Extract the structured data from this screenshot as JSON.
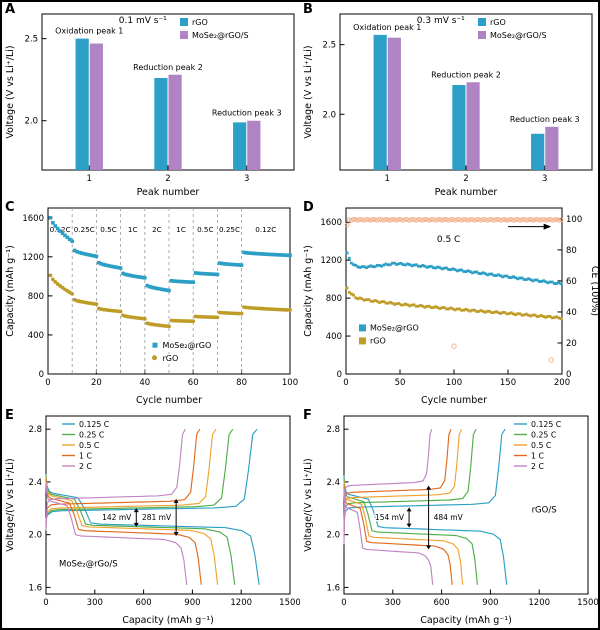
{
  "figure": {
    "panels": [
      "A",
      "B",
      "C",
      "D",
      "E",
      "F"
    ]
  },
  "chart_data": [
    {
      "panel": "A",
      "type": "bar",
      "title": "0.1 mV s⁻¹",
      "xlabel": "Peak number",
      "ylabel": "Voltage (V vs Li⁺/Li)",
      "categories": [
        "1",
        "2",
        "3"
      ],
      "ylim": [
        1.7,
        2.65
      ],
      "yticks": [
        2.0,
        2.5
      ],
      "ytick_labels": [
        "2.0",
        "2.5"
      ],
      "series": [
        {
          "name": "rGO",
          "color": "#2b9fc6",
          "values": [
            2.5,
            2.26,
            1.99
          ]
        },
        {
          "name": "MoSe₂@rGO/S",
          "color": "#b083c4",
          "values": [
            2.47,
            2.28,
            2.0
          ]
        }
      ],
      "annotations": [
        "Oxidation peak 1",
        "Reduction peak 2",
        "Reduction peak 3"
      ]
    },
    {
      "panel": "B",
      "type": "bar",
      "title": "0.3 mV s⁻¹",
      "xlabel": "Peak number",
      "ylabel": "Voltage (V vs Li⁺/Li)",
      "categories": [
        "1",
        "2",
        "3"
      ],
      "ylim": [
        1.6,
        2.72
      ],
      "yticks": [
        2.0,
        2.5
      ],
      "ytick_labels": [
        "2.0",
        "2.5"
      ],
      "series": [
        {
          "name": "rGO",
          "color": "#2b9fc6",
          "values": [
            2.57,
            2.21,
            1.86
          ]
        },
        {
          "name": "MoSe₂@rGO/S",
          "color": "#b083c4",
          "values": [
            2.55,
            2.23,
            1.91
          ]
        }
      ],
      "annotations": [
        "Oxidation peak 1",
        "Reduction peak 2",
        "Reduction peak 3"
      ]
    },
    {
      "panel": "C",
      "type": "rate",
      "xlabel": "Cycle number",
      "ylabel": "Capacity (mAh g⁻¹)",
      "xlim": [
        0,
        100
      ],
      "ylim": [
        0,
        1700
      ],
      "xticks": [
        0,
        20,
        40,
        60,
        80,
        100
      ],
      "yticks": [
        0,
        400,
        800,
        1200,
        1600
      ],
      "boundaries": [
        0,
        10,
        20,
        30,
        40,
        50,
        60,
        70,
        80,
        100
      ],
      "rate_labels": [
        "0.12C",
        "0.25C",
        "0.5C",
        "1C",
        "2C",
        "1C",
        "0.5C",
        "0.25C",
        "0.12C"
      ],
      "series": [
        {
          "name": "MoSe₂@rGO",
          "color": "#2b9fc6",
          "marker": "square",
          "segment_caps": [
            [
              1600,
              1360
            ],
            [
              1265,
              1205
            ],
            [
              1140,
              1085
            ],
            [
              1030,
              985
            ],
            [
              905,
              855
            ],
            [
              955,
              940
            ],
            [
              1035,
              1020
            ],
            [
              1135,
              1115
            ],
            [
              1245,
              1215
            ]
          ]
        },
        {
          "name": "rGO",
          "color": "#bf9c27",
          "marker": "circle",
          "segment_caps": [
            [
              1010,
              820
            ],
            [
              760,
              715
            ],
            [
              670,
              640
            ],
            [
              600,
              565
            ],
            [
              520,
              488
            ],
            [
              548,
              540
            ],
            [
              590,
              580
            ],
            [
              630,
              618
            ],
            [
              685,
              655
            ]
          ]
        }
      ],
      "legend_pos": [
        44,
        300
      ]
    },
    {
      "panel": "D",
      "type": "cycling",
      "xlabel": "Cycle number",
      "ylabel": "Capacity (mAh g⁻¹)",
      "y2label": "CE (100%)",
      "xlim": [
        0,
        200
      ],
      "ylim": [
        0,
        1750
      ],
      "y2lim": [
        0,
        107
      ],
      "xticks": [
        0,
        50,
        100,
        150,
        200
      ],
      "yticks": [
        0,
        400,
        800,
        1200,
        1600
      ],
      "y2ticks": [
        0,
        20,
        40,
        60,
        80,
        100
      ],
      "note": "0.5 C",
      "note_pos": [
        95,
        1390
      ],
      "series": [
        {
          "name": "MoSe₂@rGO",
          "color": "#2b9fc6",
          "points": [
            [
              1,
              1270
            ],
            [
              4,
              1190
            ],
            [
              8,
              1140
            ],
            [
              15,
              1125
            ],
            [
              30,
              1140
            ],
            [
              45,
              1165
            ],
            [
              60,
              1150
            ],
            [
              90,
              1115
            ],
            [
              120,
              1070
            ],
            [
              160,
              1010
            ],
            [
              200,
              950
            ]
          ]
        },
        {
          "name": "rGO",
          "color": "#bf9c27",
          "points": [
            [
              1,
              905
            ],
            [
              4,
              850
            ],
            [
              10,
              800
            ],
            [
              25,
              770
            ],
            [
              50,
              735
            ],
            [
              80,
              705
            ],
            [
              110,
              675
            ],
            [
              150,
              640
            ],
            [
              200,
              590
            ]
          ]
        }
      ],
      "ce": {
        "color": "#f2ae85",
        "first": 96.0,
        "base": 99.4,
        "outliers": [
          [
            100,
            18
          ],
          [
            190,
            9
          ]
        ]
      },
      "legend_pos": [
        12,
        470
      ]
    },
    {
      "panel": "E",
      "type": "gcd",
      "xlabel": "Capacity (mAh g⁻¹)",
      "ylabel": "Voltage/(V vs Li⁺/Li)",
      "xlim": [
        0,
        1500
      ],
      "ylim": [
        1.55,
        2.9
      ],
      "xticks": [
        0,
        300,
        600,
        900,
        1200,
        1500
      ],
      "yticks": [
        1.6,
        2.0,
        2.4,
        2.8
      ],
      "ytick_labels": [
        "1.6",
        "2.0",
        "2.4",
        "2.8"
      ],
      "rates": [
        {
          "label": "0.125 C",
          "color": "#2b9fc6",
          "dcap": 1310,
          "p1": 2.32,
          "p2": 2.08,
          "c2": 2.18
        },
        {
          "label": "0.25 C",
          "color": "#4fae49",
          "dcap": 1160,
          "p1": 2.31,
          "p2": 2.071,
          "c2": 2.189
        },
        {
          "label": "0.5 C",
          "color": "#f0a330",
          "dcap": 1055,
          "p1": 2.3,
          "p2": 2.059,
          "c2": 2.201
        },
        {
          "label": "1 C",
          "color": "#e06a1f",
          "dcap": 955,
          "p1": 2.28,
          "p2": 2.03,
          "c2": 2.23
        },
        {
          "label": "2 C",
          "color": "#c185c3",
          "dcap": 865,
          "p1": 2.26,
          "p2": 1.99,
          "c2": 2.271
        }
      ],
      "gaps": [
        {
          "x": 555,
          "v_top": 2.201,
          "v_bot": 2.059,
          "label": "142 mV",
          "side": "left"
        },
        {
          "x": 800,
          "v_top": 2.271,
          "v_bot": 1.99,
          "label": "281 mV",
          "side": "left"
        }
      ],
      "sample_label": "MoSe₂@rGo/S",
      "label_pos": [
        80,
        1.76
      ],
      "label_anchor": "start",
      "legend_pos": "left"
    },
    {
      "panel": "F",
      "type": "gcd",
      "xlabel": "Capacity (mAh g⁻¹)",
      "ylabel": "Voltage/(V vs Li⁺/Li)",
      "xlim": [
        0,
        1500
      ],
      "ylim": [
        1.55,
        2.9
      ],
      "xticks": [
        0,
        300,
        600,
        900,
        1200,
        1500
      ],
      "yticks": [
        1.6,
        2.0,
        2.4,
        2.8
      ],
      "ytick_labels": [
        "1.6",
        "2.0",
        "2.4",
        "2.8"
      ],
      "rates": [
        {
          "label": "0.125 C",
          "color": "#2b9fc6",
          "dcap": 1000,
          "p1": 2.31,
          "p2": 2.053,
          "c2": 2.207
        },
        {
          "label": "0.25 C",
          "color": "#4fae49",
          "dcap": 820,
          "p1": 2.29,
          "p2": 2.02,
          "c2": 2.24
        },
        {
          "label": "0.5 C",
          "color": "#f0a330",
          "dcap": 730,
          "p1": 2.27,
          "p2": 1.98,
          "c2": 2.28
        },
        {
          "label": "1 C",
          "color": "#e06a1f",
          "dcap": 665,
          "p1": 2.24,
          "p2": 1.94,
          "c2": 2.32
        },
        {
          "label": "2 C",
          "color": "#c185c3",
          "dcap": 545,
          "p1": 2.21,
          "p2": 1.888,
          "c2": 2.372
        }
      ],
      "gaps": [
        {
          "x": 400,
          "v_top": 2.207,
          "v_bot": 2.053,
          "label": "154 mV",
          "side": "left"
        },
        {
          "x": 520,
          "v_top": 2.372,
          "v_bot": 1.888,
          "label": "484 mV",
          "side": "right"
        }
      ],
      "sample_label": "rGO/S",
      "label_pos": [
        1230,
        2.17
      ],
      "label_anchor": "middle",
      "legend_pos": "right"
    }
  ]
}
